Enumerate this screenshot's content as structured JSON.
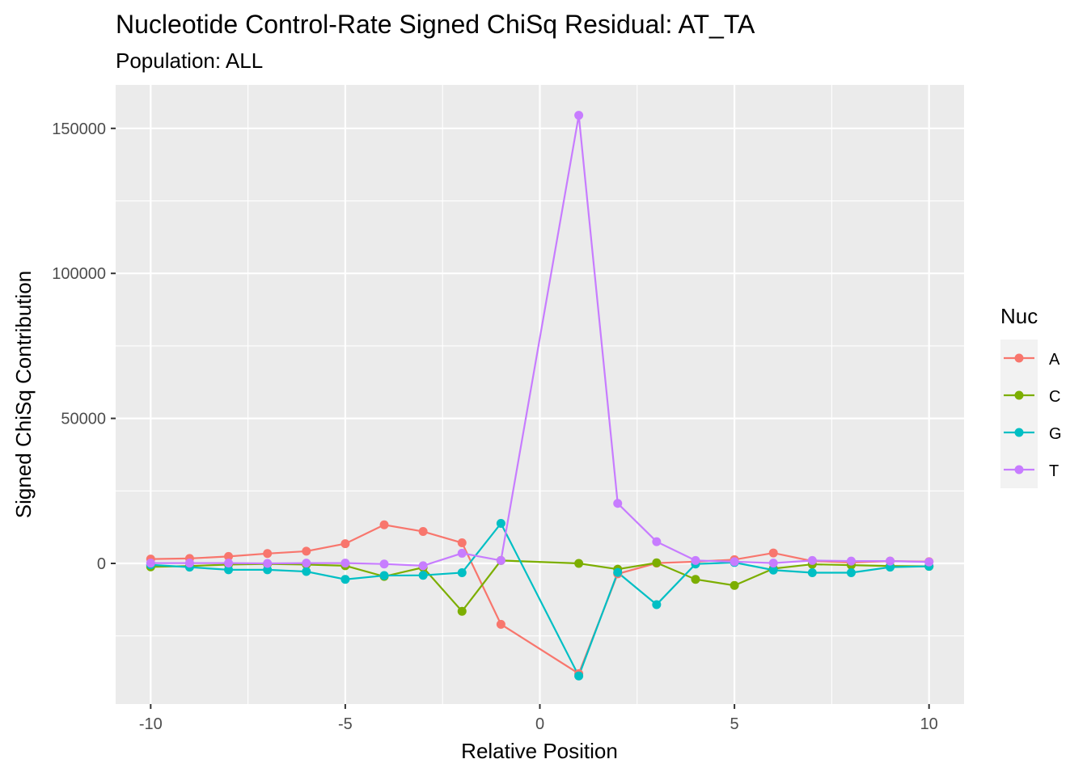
{
  "chart_data": {
    "type": "line",
    "title": "Nucleotide Control-Rate Signed ChiSq Residual: AT_TA",
    "subtitle": "Population: ALL",
    "xlabel": "Relative Position",
    "ylabel": "Signed ChiSq Contribution",
    "x": [
      -10,
      -9,
      -8,
      -7,
      -6,
      -5,
      -4,
      -3,
      -2,
      -1,
      1,
      2,
      3,
      4,
      5,
      6,
      7,
      8,
      9,
      10
    ],
    "xlim": [
      -10.9,
      10.9
    ],
    "ylim": [
      -48500,
      165000
    ],
    "x_ticks": [
      -10,
      -5,
      0,
      5,
      10
    ],
    "x_tick_labels": [
      "-10",
      "-5",
      "0",
      "5",
      "10"
    ],
    "y_ticks": [
      0,
      50000,
      100000,
      150000
    ],
    "y_tick_labels": [
      "0",
      "50000",
      "100000",
      "150000"
    ],
    "grid": true,
    "legend": {
      "title": "Nuc",
      "position": "right"
    },
    "series": [
      {
        "name": "A",
        "color": "#F8766D",
        "values": [
          1500,
          1700,
          2400,
          3400,
          4200,
          6800,
          13300,
          11000,
          7100,
          -21000,
          -38000,
          -3600,
          100,
          600,
          1300,
          3600,
          800,
          300,
          800,
          600
        ]
      },
      {
        "name": "C",
        "color": "#7CAE00",
        "values": [
          -1200,
          -900,
          -400,
          -200,
          -400,
          -800,
          -4500,
          -1400,
          -16500,
          1000,
          0,
          -2000,
          200,
          -5500,
          -7600,
          -1800,
          -300,
          -600,
          -900,
          -1000
        ]
      },
      {
        "name": "G",
        "color": "#00BFC4",
        "values": [
          -500,
          -1300,
          -2200,
          -2200,
          -2800,
          -5500,
          -4200,
          -4100,
          -3200,
          13800,
          -38800,
          -3100,
          -14200,
          -200,
          300,
          -2300,
          -3200,
          -3200,
          -1300,
          -1000
        ]
      },
      {
        "name": "T",
        "color": "#C77CFF",
        "values": [
          100,
          100,
          100,
          0,
          100,
          100,
          -200,
          -800,
          3500,
          1000,
          154500,
          20700,
          7500,
          1000,
          600,
          100,
          1000,
          800,
          800,
          500
        ]
      }
    ]
  }
}
